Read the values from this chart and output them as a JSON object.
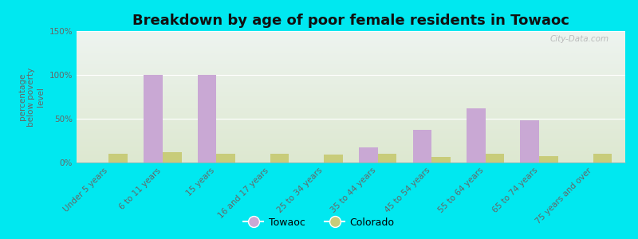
{
  "title": "Breakdown by age of poor female residents in Towaoc",
  "categories": [
    "Under 5 years",
    "6 to 11 years",
    "15 years",
    "16 and 17 years",
    "25 to 34 years",
    "35 to 44 years",
    "45 to 54 years",
    "55 to 64 years",
    "65 to 74 years",
    "75 years and over"
  ],
  "towaoc_values": [
    0,
    100,
    100,
    0,
    0,
    17,
    37,
    62,
    48,
    0
  ],
  "colorado_values": [
    10,
    12,
    10,
    10,
    9,
    10,
    6,
    10,
    7,
    10
  ],
  "towaoc_color": "#c9a8d4",
  "colorado_color": "#c8cc7a",
  "bg_top": "#eef4f0",
  "bg_bottom": "#dde8d0",
  "ylabel": "percentage\nbelow poverty\nlevel",
  "ylim": [
    0,
    150
  ],
  "yticks": [
    0,
    50,
    100,
    150
  ],
  "ytick_labels": [
    "0%",
    "50%",
    "100%",
    "150%"
  ],
  "bar_width": 0.35,
  "outer_bg": "#00e8f0",
  "watermark": "City-Data.com",
  "title_fontsize": 13,
  "tick_fontsize": 7.5,
  "ylabel_fontsize": 7.5
}
